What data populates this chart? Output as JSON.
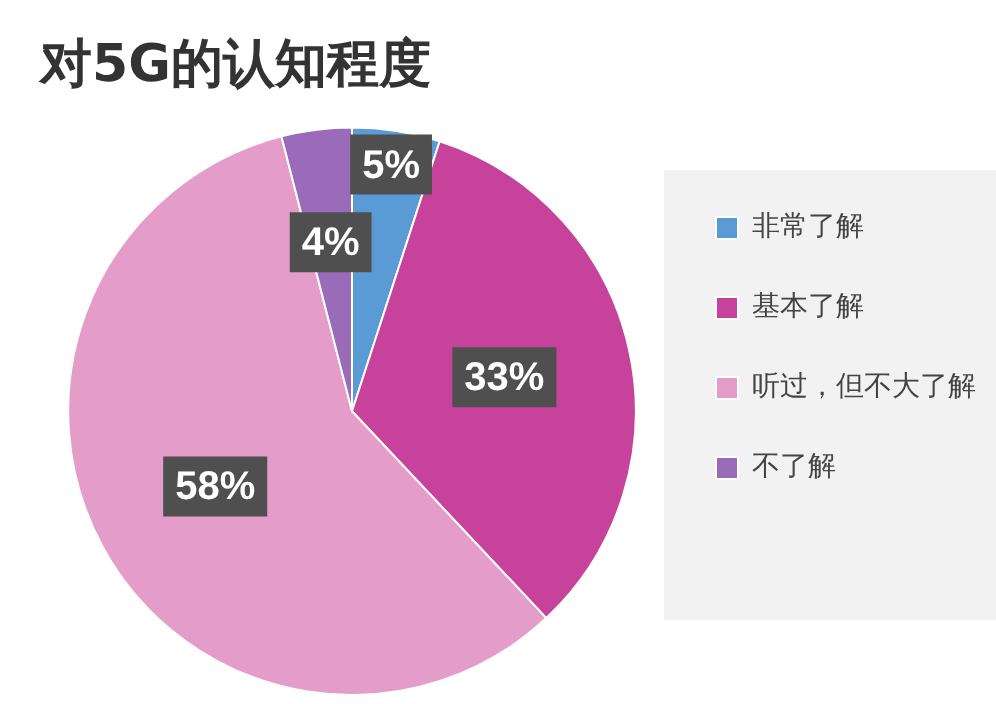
{
  "chart_data": {
    "type": "pie",
    "title": "对5G的认知程度",
    "categories": [
      "非常了解",
      "基本了解",
      "听过，但不大了解",
      "不了解"
    ],
    "values": [
      5,
      33,
      58,
      4
    ],
    "value_labels": [
      "5%",
      "33%",
      "58%",
      "4%"
    ],
    "colors": [
      "#5b9bd5",
      "#c7429a",
      "#e49cc8",
      "#9a6bb8"
    ],
    "legend": "right"
  }
}
